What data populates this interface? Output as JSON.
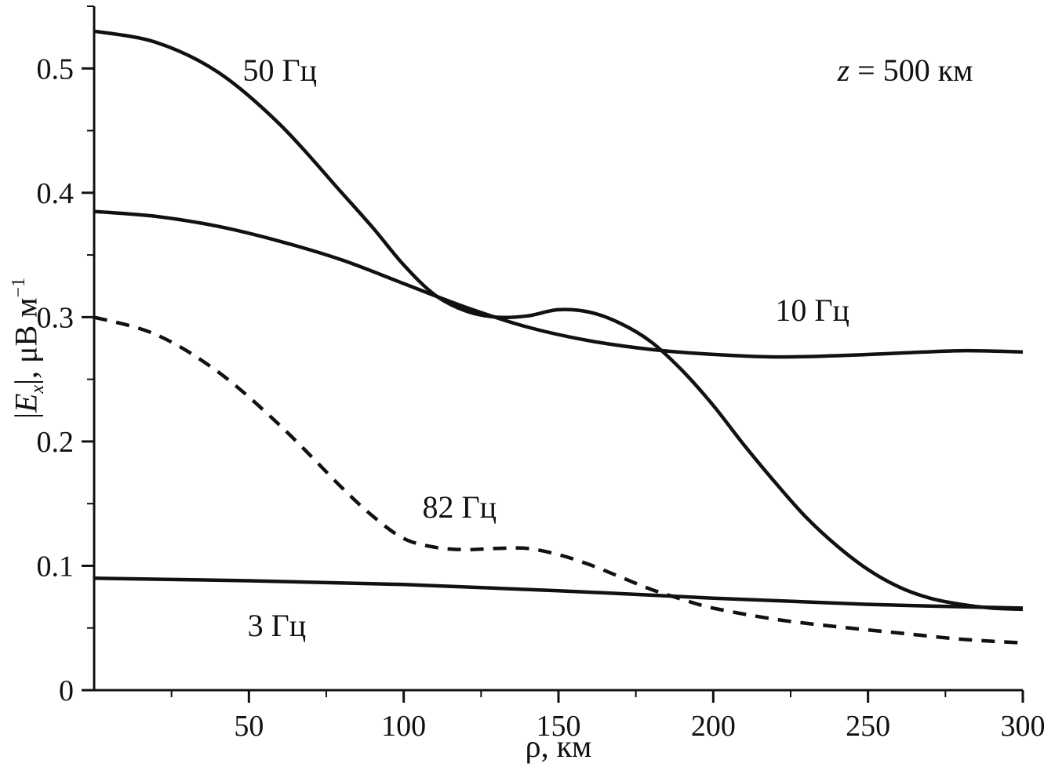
{
  "chart_data": {
    "type": "line",
    "title": "",
    "xlabel": "ρ, км",
    "ylabel": "|Ex|, μВ м⁻¹",
    "ylabel_parts": {
      "p1": "|",
      "p2": "E",
      "p3": "x",
      "p4": "|, μВ м",
      "p5": "−1"
    },
    "annotation": "z = 500 км",
    "annotation_parts": {
      "var": "z",
      "rest": " = 500 км"
    },
    "annotation_pos": [
      262,
      0.498
    ],
    "xlim": [
      0,
      300
    ],
    "ylim": [
      0,
      0.55
    ],
    "xticks": [
      50,
      100,
      150,
      200,
      250,
      300
    ],
    "xtick_labels": [
      "50",
      "100",
      "150",
      "200",
      "250",
      "300"
    ],
    "yticks": [
      0,
      0.1,
      0.2,
      0.3,
      0.4,
      0.5
    ],
    "ytick_labels": [
      "0",
      "0.1",
      "0.2",
      "0.3",
      "0.4",
      "0.5"
    ],
    "x_minor_step": 25,
    "y_minor_step": 0.05,
    "grid": false,
    "legend_position": "inline-labels",
    "line_color": "#111111",
    "series": [
      {
        "name": "50 Гц",
        "style": "solid",
        "label_pos": [
          60,
          0.498
        ],
        "x": [
          0,
          20,
          40,
          60,
          80,
          90,
          100,
          110,
          120,
          130,
          140,
          150,
          160,
          170,
          180,
          190,
          200,
          210,
          220,
          230,
          240,
          250,
          260,
          270,
          280,
          290,
          300
        ],
        "y": [
          0.53,
          0.521,
          0.497,
          0.455,
          0.4,
          0.372,
          0.342,
          0.318,
          0.305,
          0.3,
          0.301,
          0.306,
          0.304,
          0.295,
          0.28,
          0.257,
          0.229,
          0.197,
          0.167,
          0.139,
          0.116,
          0.097,
          0.083,
          0.074,
          0.069,
          0.066,
          0.065
        ]
      },
      {
        "name": "10 Гц",
        "style": "solid",
        "label_pos": [
          232,
          0.305
        ],
        "x": [
          0,
          20,
          40,
          60,
          80,
          100,
          120,
          140,
          160,
          180,
          200,
          220,
          240,
          260,
          280,
          300
        ],
        "y": [
          0.385,
          0.381,
          0.373,
          0.361,
          0.346,
          0.327,
          0.308,
          0.292,
          0.281,
          0.274,
          0.27,
          0.268,
          0.269,
          0.271,
          0.273,
          0.272
        ]
      },
      {
        "name": "82 Гц",
        "style": "dashed",
        "label_pos": [
          118,
          0.147
        ],
        "x": [
          0,
          20,
          40,
          60,
          80,
          90,
          100,
          110,
          120,
          130,
          140,
          150,
          160,
          170,
          180,
          190,
          200,
          220,
          240,
          260,
          280,
          300
        ],
        "y": [
          0.3,
          0.286,
          0.256,
          0.213,
          0.163,
          0.14,
          0.122,
          0.115,
          0.113,
          0.114,
          0.114,
          0.109,
          0.101,
          0.091,
          0.081,
          0.073,
          0.066,
          0.057,
          0.051,
          0.046,
          0.041,
          0.038
        ]
      },
      {
        "name": "3 Гц",
        "style": "solid",
        "label_pos": [
          59,
          0.052
        ],
        "x": [
          0,
          50,
          100,
          150,
          200,
          250,
          300
        ],
        "y": [
          0.09,
          0.088,
          0.085,
          0.08,
          0.074,
          0.069,
          0.066
        ]
      }
    ]
  }
}
